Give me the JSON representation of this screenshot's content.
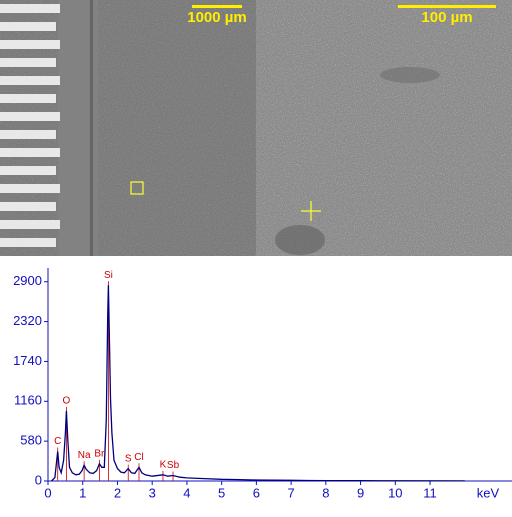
{
  "images": {
    "left_scale": "1000 µm",
    "right_scale": "100 µm"
  },
  "chart_data": {
    "type": "line",
    "x_label": "keV",
    "x": [
      0.1,
      0.2,
      0.25,
      0.28,
      0.32,
      0.38,
      0.45,
      0.5,
      0.53,
      0.57,
      0.62,
      0.7,
      0.8,
      0.9,
      0.98,
      1.04,
      1.1,
      1.2,
      1.3,
      1.4,
      1.48,
      1.55,
      1.62,
      1.68,
      1.72,
      1.74,
      1.77,
      1.8,
      1.84,
      1.9,
      2.0,
      2.1,
      2.2,
      2.31,
      2.4,
      2.5,
      2.62,
      2.7,
      2.8,
      3.0,
      3.31,
      3.45,
      3.6,
      3.8,
      4.0,
      4.5,
      5.0,
      5.5,
      6.0,
      6.5,
      7.0,
      7.5,
      8.0,
      9.0,
      10.0,
      12.0
    ],
    "series": [
      {
        "color": "#00007f",
        "values": [
          0,
          50,
          300,
          430,
          200,
          120,
          300,
          700,
          1020,
          600,
          200,
          120,
          90,
          100,
          150,
          230,
          170,
          120,
          110,
          150,
          250,
          200,
          200,
          900,
          2400,
          2850,
          2000,
          1200,
          700,
          300,
          180,
          130,
          120,
          180,
          120,
          110,
          200,
          120,
          90,
          70,
          90,
          70,
          80,
          55,
          45,
          35,
          25,
          20,
          15,
          12,
          10,
          8,
          6,
          4,
          3,
          2
        ]
      }
    ],
    "annotations": [
      {
        "label": "C",
        "x": 0.28,
        "y": 430
      },
      {
        "label": "O",
        "x": 0.53,
        "y": 1020
      },
      {
        "label": "Na",
        "x": 1.04,
        "y": 230
      },
      {
        "label": "Br",
        "x": 1.48,
        "y": 250
      },
      {
        "label": "Si",
        "x": 1.74,
        "y": 2850
      },
      {
        "label": "S",
        "x": 2.31,
        "y": 180
      },
      {
        "label": "Cl",
        "x": 2.62,
        "y": 200
      },
      {
        "label": "K",
        "x": 3.31,
        "y": 90
      },
      {
        "label": "Sb",
        "x": 3.6,
        "y": 80
      }
    ],
    "annotation_color": "#cc0000",
    "xlim": [
      0,
      13.36
    ],
    "xticks": [
      0,
      1,
      2,
      3,
      4,
      5,
      6,
      7,
      8,
      9,
      10,
      11
    ],
    "ylim": [
      0,
      3100
    ],
    "yticks": [
      0,
      580,
      1160,
      1740,
      2320,
      2900
    ]
  }
}
